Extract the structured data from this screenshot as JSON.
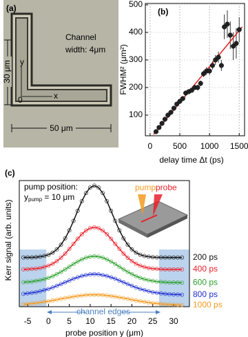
{
  "panel_a": {
    "label": "(a)",
    "channel_text": [
      "Channel",
      "width: 4μm"
    ],
    "dim_vertical": "30 μm",
    "dim_horizontal": "50 μm",
    "axis_x": "x",
    "axis_y": "y",
    "origin": "0"
  },
  "chart_data": [
    {
      "type": "scatter",
      "panel_label": "(b)",
      "xlabel": "delay time Δt (ps)",
      "ylabel": "FWHM² (μm²)",
      "xlim": [
        -80,
        1590
      ],
      "ylim": [
        25,
        505
      ],
      "xticks": [
        0,
        500,
        1000,
        1500
      ],
      "yticks": [
        100,
        200,
        300,
        400,
        500
      ],
      "grid": true,
      "series": [
        {
          "color": "#222222",
          "x": [
            100,
            150,
            200,
            250,
            300,
            350,
            400,
            450,
            500,
            550,
            600,
            650,
            700,
            750,
            800,
            850,
            900,
            950,
            1000,
            1050,
            1100,
            1150,
            1200,
            1250,
            1300,
            1350,
            1400,
            1450,
            1500
          ],
          "values": [
            40,
            55,
            70,
            85,
            100,
            110,
            125,
            140,
            150,
            160,
            180,
            185,
            190,
            200,
            200,
            215,
            250,
            260,
            260,
            280,
            300,
            310,
            280,
            420,
            430,
            390,
            350,
            360,
            410
          ],
          "errors": [
            3,
            4,
            4,
            5,
            5,
            5,
            6,
            6,
            6,
            7,
            7,
            8,
            8,
            9,
            10,
            10,
            12,
            14,
            14,
            15,
            18,
            20,
            20,
            45,
            50,
            50,
            50,
            55,
            45
          ]
        },
        {
          "type": "line",
          "color": "#e02020",
          "x": [
            60,
            1550
          ],
          "values": [
            30,
            420
          ]
        }
      ]
    },
    {
      "type": "line",
      "panel_label": "(c)",
      "xlabel": "probe position y (μm)",
      "ylabel": "Kerr signal (arb. units)",
      "xlim": [
        -7,
        33.8
      ],
      "ylim": [
        0,
        10
      ],
      "xticks": [
        -5,
        0,
        5,
        10,
        15,
        20,
        25,
        30
      ],
      "pump_position": [
        "pump position:",
        "y",
        "pump",
        " = 10 μm"
      ],
      "inset_labels": [
        "pump",
        "probe"
      ],
      "channel_edges_label": "channel edges",
      "shaded_regions": [
        [
          -7,
          -0.5
        ],
        [
          26.5,
          33.8
        ]
      ],
      "x": [
        -6,
        -5,
        -4,
        -3,
        -2,
        -1,
        0,
        1,
        2,
        3,
        4,
        5,
        6,
        7,
        8,
        9,
        10,
        11,
        12,
        13,
        14,
        15,
        16,
        17,
        18,
        19,
        20,
        21,
        22,
        23,
        24,
        25,
        26,
        27,
        28,
        29,
        30,
        31,
        32
      ],
      "series": [
        {
          "name": "200 ps",
          "color": "#111111",
          "values": [
            3.9,
            3.91,
            3.91,
            3.93,
            3.96,
            4.02,
            4.12,
            4.28,
            4.54,
            4.91,
            5.42,
            6.05,
            6.8,
            7.6,
            8.37,
            9.01,
            9.45,
            9.6,
            9.45,
            9.01,
            8.37,
            7.6,
            6.8,
            6.05,
            5.42,
            4.91,
            4.54,
            4.28,
            4.12,
            4.02,
            3.96,
            3.93,
            3.91,
            3.91,
            3.9,
            3.9,
            3.9,
            3.9,
            3.9
          ]
        },
        {
          "name": "400 ps",
          "color": "#e8202a",
          "values": [
            2.96,
            2.97,
            2.99,
            3.02,
            3.06,
            3.14,
            3.25,
            3.4,
            3.61,
            3.88,
            4.21,
            4.58,
            4.98,
            5.38,
            5.75,
            6.04,
            6.23,
            6.3,
            6.23,
            6.04,
            5.75,
            5.38,
            4.98,
            4.58,
            4.21,
            3.88,
            3.61,
            3.4,
            3.25,
            3.14,
            3.06,
            3.02,
            2.99,
            2.97,
            2.96,
            2.96,
            2.95,
            2.95,
            2.95
          ]
        },
        {
          "name": "600 ps",
          "color": "#2ca02c",
          "values": [
            1.94,
            1.96,
            1.99,
            2.04,
            2.1,
            2.18,
            2.29,
            2.42,
            2.58,
            2.76,
            2.96,
            3.17,
            3.38,
            3.58,
            3.75,
            3.89,
            3.97,
            4.0,
            3.97,
            3.89,
            3.75,
            3.58,
            3.38,
            3.17,
            2.96,
            2.76,
            2.58,
            2.42,
            2.29,
            2.18,
            2.1,
            2.04,
            1.99,
            1.96,
            1.94,
            1.92,
            1.91,
            1.91,
            1.9
          ]
        },
        {
          "name": "800 ps",
          "color": "#1f2ed0",
          "values": [
            1.02,
            1.05,
            1.1,
            1.15,
            1.22,
            1.31,
            1.41,
            1.52,
            1.65,
            1.79,
            1.93,
            2.07,
            2.21,
            2.33,
            2.43,
            2.51,
            2.56,
            2.58,
            2.56,
            2.51,
            2.43,
            2.33,
            2.21,
            2.07,
            1.93,
            1.79,
            1.65,
            1.52,
            1.41,
            1.31,
            1.22,
            1.15,
            1.1,
            1.05,
            1.02,
            0.99,
            0.97,
            0.96,
            0.95
          ]
        },
        {
          "name": "1000 ps",
          "color": "#f39a1e",
          "values": [
            0.19,
            0.21,
            0.25,
            0.28,
            0.33,
            0.38,
            0.43,
            0.49,
            0.55,
            0.62,
            0.68,
            0.74,
            0.8,
            0.85,
            0.89,
            0.92,
            0.94,
            0.95,
            0.94,
            0.92,
            0.89,
            0.85,
            0.8,
            0.74,
            0.68,
            0.62,
            0.55,
            0.49,
            0.43,
            0.38,
            0.33,
            0.28,
            0.25,
            0.21,
            0.19,
            0.17,
            0.15,
            0.14,
            0.13
          ]
        }
      ]
    }
  ]
}
